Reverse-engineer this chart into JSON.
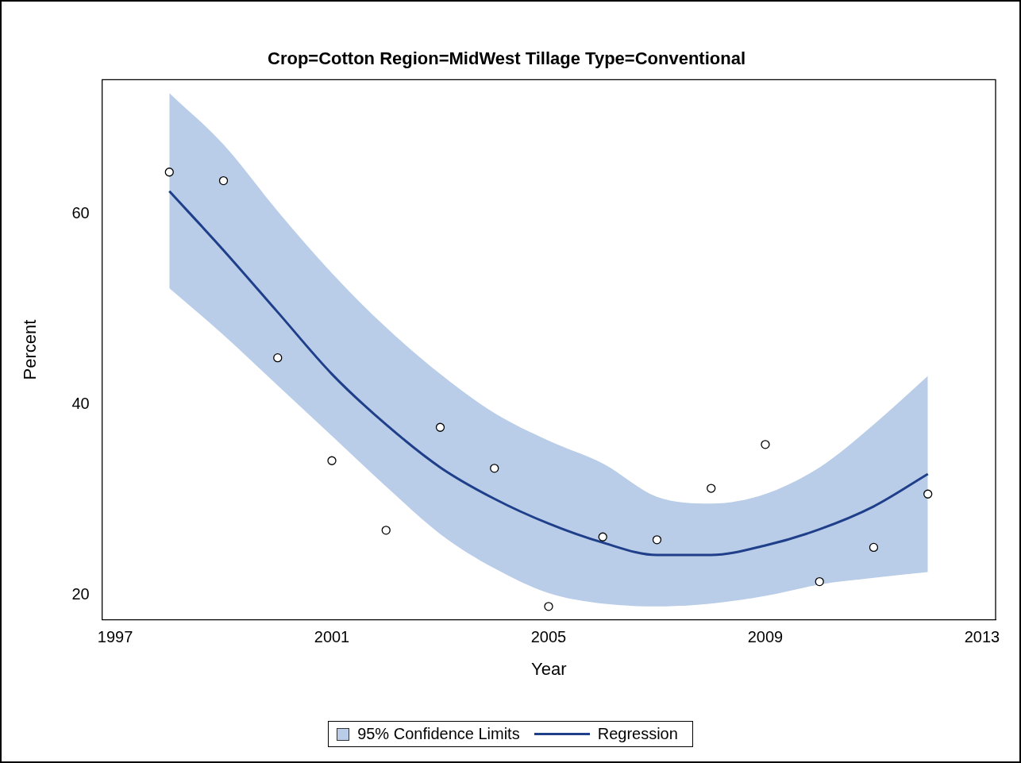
{
  "chart_data": {
    "type": "scatter",
    "title": "Crop=Cotton Region=MidWest Tillage Type=Conventional",
    "xlabel": "Year",
    "ylabel": "Percent",
    "xlim": [
      1996.76,
      2013.25
    ],
    "xticks": [
      1997,
      2001,
      2005,
      2009,
      2013
    ],
    "ylim": [
      17.4,
      74.1
    ],
    "yticks": [
      20,
      40,
      60
    ],
    "grid": false,
    "legend": "bottom",
    "marker": "circle",
    "annotations": [
      "95% Confidence Limits"
    ],
    "series": [
      {
        "type": "line",
        "name": "Regression",
        "color": "#1f3f8a",
        "marker": "none",
        "line_style": "solid",
        "x": [
          1998,
          1999,
          2000,
          2001,
          2002,
          2003,
          2004,
          2005,
          2006,
          2007,
          2008,
          2009,
          2010,
          2011,
          2012
        ],
        "values": [
          62.4,
          56.2,
          49.7,
          43.2,
          37.9,
          33.4,
          30.1,
          27.5,
          25.5,
          24.2,
          24.2,
          25.2,
          26.9,
          29.3,
          32.7
        ],
        "lower": [
          52.2,
          47.3,
          42.0,
          36.7,
          31.4,
          26.4,
          22.8,
          20.2,
          19.1,
          18.8,
          19.1,
          19.9,
          21.1,
          21.8,
          22.4
        ],
        "upper": [
          72.7,
          67.3,
          60.3,
          53.8,
          48.1,
          43.2,
          39.1,
          36.2,
          33.8,
          30.3,
          29.6,
          30.6,
          33.4,
          37.9,
          43.0
        ]
      },
      {
        "color": "#000000",
        "x": [
          1998,
          1999,
          2000,
          2001,
          2002,
          2003,
          2004,
          2005,
          2006,
          2007,
          2008,
          2009,
          2010,
          2011,
          2012
        ],
        "values": [
          64.4,
          63.5,
          44.9,
          34.1,
          26.8,
          37.6,
          33.3,
          18.8,
          26.1,
          25.8,
          31.2,
          35.8,
          21.4,
          25.0,
          30.6
        ]
      }
    ]
  }
}
